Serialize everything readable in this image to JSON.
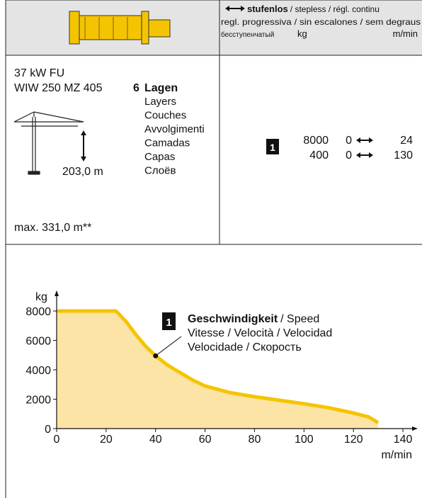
{
  "header": {
    "direction_label": "stufenlos",
    "line1_rest": "/ stepless / régl. continu",
    "line2": "regl. progressiva / sin escalones / sem degraus",
    "line3_ru": "бесступенчатый",
    "unit_kg": "kg",
    "unit_speed": "m/min"
  },
  "specs": {
    "power": "37 kW FU",
    "model": "WIW 250 MZ 405",
    "layers_count": "6",
    "layers_title": "Lagen",
    "layer_translations": [
      "Layers",
      "Couches",
      "Avvolgimenti",
      "Camadas",
      "Capas",
      "Слоёв"
    ],
    "height": "203,0 m",
    "max": "max. 331,0 m**"
  },
  "speed_table": {
    "gear": "1",
    "rows": [
      {
        "kg": 8000,
        "from": 0,
        "to": 24
      },
      {
        "kg": 400,
        "from": 0,
        "to": 130
      }
    ]
  },
  "chart_data": {
    "type": "area",
    "ylabel": "kg",
    "xlabel": "m/min",
    "x": [
      0,
      24,
      28,
      32,
      36,
      40,
      45,
      50,
      55,
      60,
      70,
      80,
      90,
      100,
      110,
      120,
      126,
      130
    ],
    "values": [
      8000,
      8000,
      7300,
      6400,
      5600,
      4950,
      4300,
      3800,
      3300,
      2900,
      2450,
      2170,
      1930,
      1690,
      1420,
      1060,
      800,
      400
    ],
    "xlim": [
      0,
      146
    ],
    "ylim": [
      0,
      9400
    ],
    "xticks": [
      0,
      20,
      40,
      60,
      80,
      100,
      120,
      140
    ],
    "yticks": [
      0,
      2000,
      4000,
      6000,
      8000
    ],
    "color": "#f5c400",
    "fill_color": "#fce4a6",
    "annotation": {
      "gear": "1",
      "title": "Geschwindigkeit",
      "lines": [
        "/ Speed",
        "Vitesse / Velocità / Velocidad",
        "Velocidade / Скорость"
      ],
      "x": 40,
      "y": 4950
    }
  }
}
